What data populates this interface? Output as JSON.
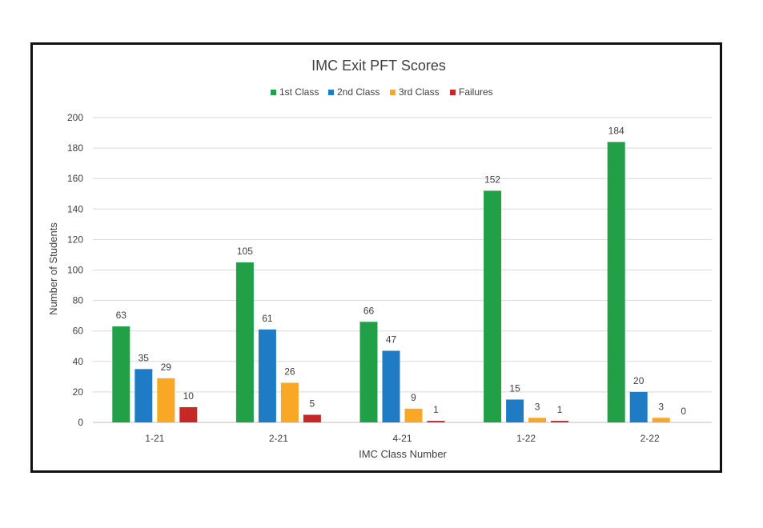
{
  "chart_data": {
    "type": "bar",
    "title": "IMC Exit PFT Scores",
    "xlabel": "IMC Class Number",
    "ylabel": "Number of Students",
    "categories": [
      "1-21",
      "2-21",
      "4-21",
      "1-22",
      "2-22"
    ],
    "series": [
      {
        "name": "1st Class",
        "color": "#21a047",
        "values": [
          63,
          105,
          66,
          152,
          184
        ]
      },
      {
        "name": "2nd Class",
        "color": "#1f7bc4",
        "values": [
          35,
          61,
          47,
          15,
          20
        ]
      },
      {
        "name": "3rd Class",
        "color": "#f9a825",
        "values": [
          29,
          26,
          9,
          3,
          3
        ]
      },
      {
        "name": "Failures",
        "color": "#c62828",
        "values": [
          10,
          5,
          1,
          1,
          0
        ]
      }
    ],
    "ylim": [
      0,
      200
    ],
    "yticks": [
      0,
      20,
      40,
      60,
      80,
      100,
      120,
      140,
      160,
      180,
      200
    ],
    "grid": true,
    "legend_position": "top-center",
    "data_labels": true
  }
}
